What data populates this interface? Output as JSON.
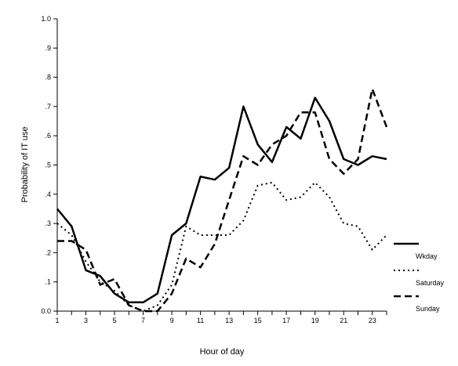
{
  "chart_data": {
    "type": "line",
    "title": "",
    "xlabel": "Hour of day",
    "ylabel": "Probability of IT use",
    "xlim": [
      1,
      24
    ],
    "ylim": [
      0,
      1
    ],
    "x_tick_labels": [
      "1",
      "3",
      "5",
      "7",
      "9",
      "11",
      "13",
      "15",
      "17",
      "19",
      "21",
      "23"
    ],
    "y_tick_labels": [
      "0.0",
      ".1",
      ".2",
      ".3",
      ".4",
      ".5",
      ".6",
      ".7",
      ".8",
      ".9",
      "1.0"
    ],
    "grid": false,
    "legend_position": "right",
    "x": [
      1,
      2,
      3,
      4,
      5,
      6,
      7,
      8,
      9,
      10,
      11,
      12,
      13,
      14,
      15,
      16,
      17,
      18,
      19,
      20,
      21,
      22,
      23,
      24
    ],
    "series": [
      {
        "name": "Wkday",
        "style": "solid",
        "values": [
          0.35,
          0.29,
          0.14,
          0.12,
          0.06,
          0.03,
          0.03,
          0.06,
          0.26,
          0.3,
          0.46,
          0.45,
          0.49,
          0.7,
          0.57,
          0.51,
          0.63,
          0.59,
          0.73,
          0.65,
          0.52,
          0.5,
          0.53,
          0.52
        ]
      },
      {
        "name": "Saturday",
        "style": "dotted",
        "values": [
          0.3,
          0.26,
          0.17,
          0.1,
          0.07,
          0.02,
          0.0,
          0.02,
          0.09,
          0.29,
          0.26,
          0.26,
          0.26,
          0.31,
          0.43,
          0.44,
          0.38,
          0.39,
          0.44,
          0.39,
          0.3,
          0.29,
          0.21,
          0.26
        ]
      },
      {
        "name": "Sunday",
        "style": "dashed",
        "values": [
          0.24,
          0.24,
          0.21,
          0.09,
          0.11,
          0.02,
          0.0,
          0.0,
          0.06,
          0.18,
          0.15,
          0.23,
          0.38,
          0.53,
          0.5,
          0.57,
          0.6,
          0.68,
          0.68,
          0.52,
          0.47,
          0.52,
          0.76,
          0.63
        ]
      }
    ],
    "colors": {
      "line": "#000000",
      "background": "#ffffff"
    }
  }
}
